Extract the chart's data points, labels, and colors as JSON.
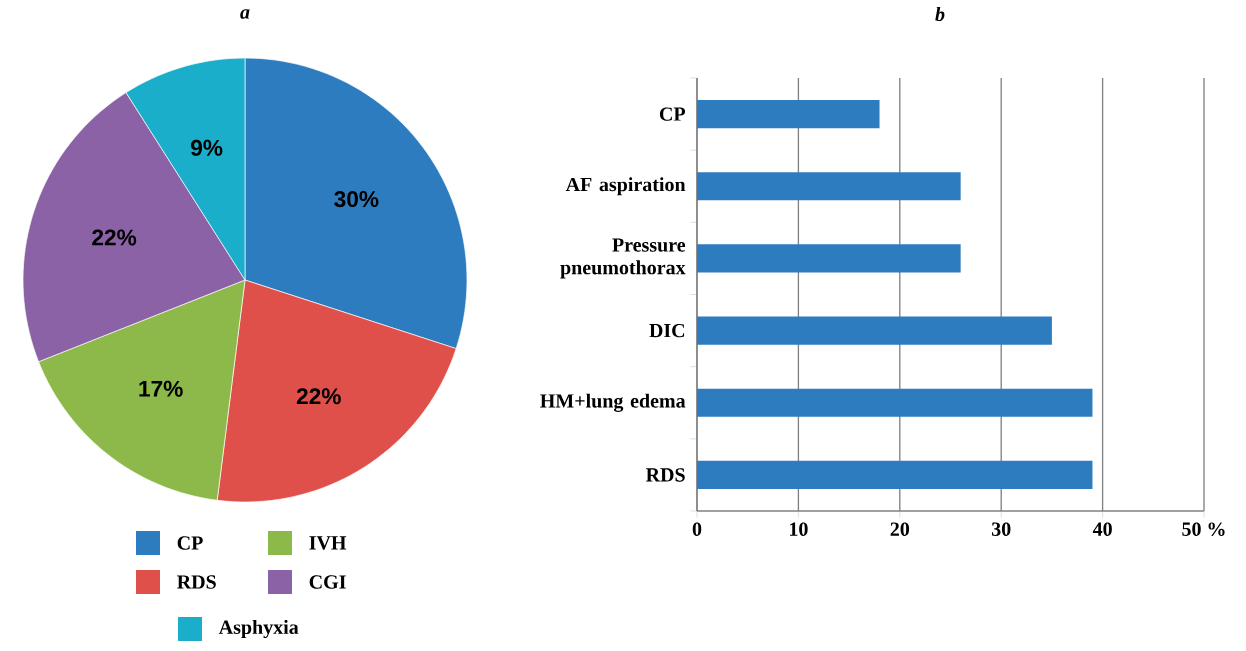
{
  "chart_data": [
    {
      "type": "pie",
      "title": "a",
      "categories": [
        "CP",
        "RDS",
        "IVH",
        "CGI",
        "Asphyxia"
      ],
      "values": [
        30,
        22,
        17,
        22,
        9
      ],
      "colors": [
        "#2e7cc0",
        "#e0504a",
        "#8db84a",
        "#8b62a6",
        "#1aaecb"
      ],
      "value_labels": [
        "30%",
        "22%",
        "17%",
        "22%",
        "9%"
      ],
      "legend": "bottom"
    },
    {
      "type": "bar",
      "orientation": "horizontal",
      "title": "b",
      "categories": [
        "CP",
        "AF aspiration",
        "Pressure pneumothorax",
        "DIC",
        "HM+lung edema",
        "RDS"
      ],
      "values": [
        18,
        26,
        26,
        35,
        39,
        39
      ],
      "color": "#2e7cc0",
      "xlim": [
        0,
        50
      ],
      "xticks": [
        0,
        10,
        20,
        30,
        40,
        {
          "value": 50,
          "label": "50 %"
        }
      ],
      "grid": "x"
    }
  ]
}
